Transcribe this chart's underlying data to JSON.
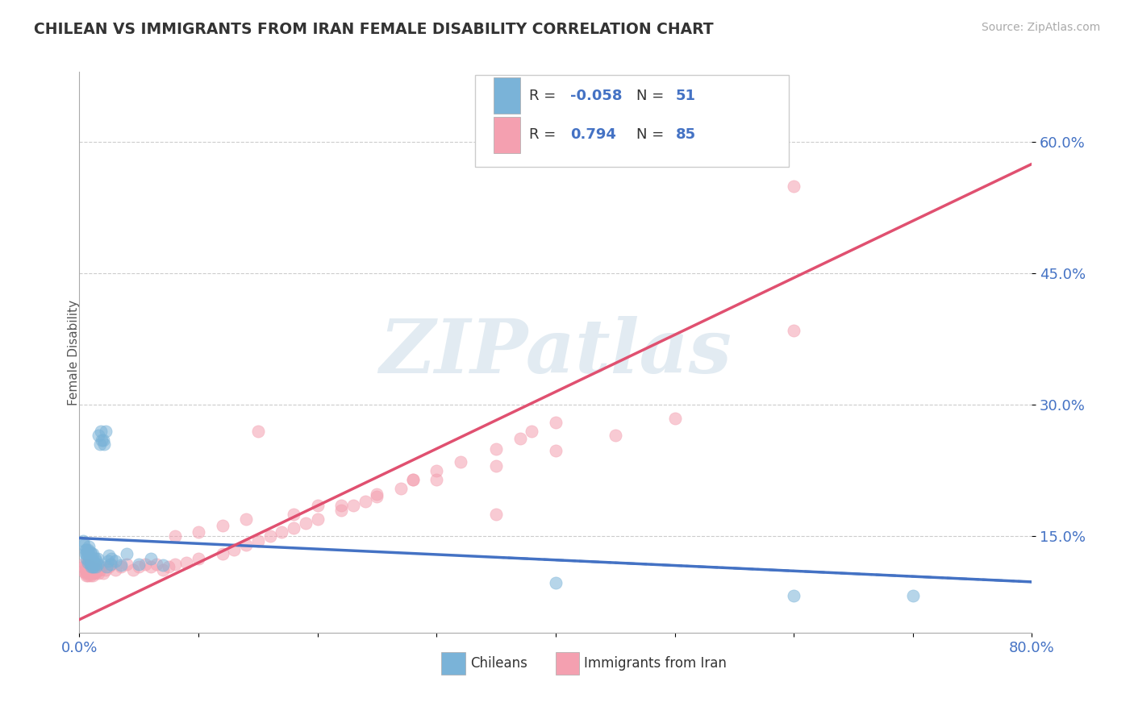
{
  "title": "CHILEAN VS IMMIGRANTS FROM IRAN FEMALE DISABILITY CORRELATION CHART",
  "source_text": "Source: ZipAtlas.com",
  "ylabel": "Female Disability",
  "xlim": [
    0.0,
    0.8
  ],
  "ylim": [
    0.04,
    0.68
  ],
  "yticks": [
    0.15,
    0.3,
    0.45,
    0.6
  ],
  "ytick_labels": [
    "15.0%",
    "30.0%",
    "45.0%",
    "60.0%"
  ],
  "xticks": [
    0.0,
    0.1,
    0.2,
    0.3,
    0.4,
    0.5,
    0.6,
    0.7,
    0.8
  ],
  "xtick_labels": [
    "0.0%",
    "",
    "",
    "",
    "",
    "",
    "",
    "",
    "80.0%"
  ],
  "legend_r1_label": "R = -0.058",
  "legend_n1_label": "N = 51",
  "legend_r2_label": "R =  0.794",
  "legend_n2_label": "N = 85",
  "chileans_color": "#7ab3d8",
  "iran_color": "#f4a0b0",
  "trend_chileans_color": "#4472c4",
  "trend_iran_color": "#e05070",
  "watermark": "ZIPatlas",
  "bottom_legend_chileans": "Chileans",
  "bottom_legend_iran": "Immigrants from Iran",
  "chile_trend_x0": 0.0,
  "chile_trend_y0": 0.148,
  "chile_trend_x1": 0.8,
  "chile_trend_y1": 0.098,
  "iran_trend_x0": 0.0,
  "iran_trend_y0": 0.055,
  "iran_trend_x1": 0.8,
  "iran_trend_y1": 0.575,
  "chileans_x": [
    0.003,
    0.004,
    0.005,
    0.005,
    0.006,
    0.006,
    0.006,
    0.007,
    0.007,
    0.007,
    0.008,
    0.008,
    0.008,
    0.009,
    0.009,
    0.009,
    0.01,
    0.01,
    0.01,
    0.011,
    0.011,
    0.011,
    0.012,
    0.012,
    0.013,
    0.013,
    0.014,
    0.014,
    0.015,
    0.015,
    0.016,
    0.017,
    0.018,
    0.019,
    0.02,
    0.021,
    0.022,
    0.023,
    0.024,
    0.025,
    0.026,
    0.027,
    0.03,
    0.035,
    0.04,
    0.05,
    0.06,
    0.07,
    0.4,
    0.6,
    0.7
  ],
  "chileans_y": [
    0.145,
    0.14,
    0.13,
    0.135,
    0.125,
    0.13,
    0.135,
    0.12,
    0.128,
    0.135,
    0.122,
    0.13,
    0.138,
    0.118,
    0.125,
    0.132,
    0.115,
    0.122,
    0.13,
    0.115,
    0.122,
    0.13,
    0.115,
    0.122,
    0.118,
    0.125,
    0.115,
    0.122,
    0.118,
    0.125,
    0.265,
    0.255,
    0.27,
    0.26,
    0.26,
    0.255,
    0.27,
    0.115,
    0.122,
    0.128,
    0.118,
    0.125,
    0.122,
    0.117,
    0.13,
    0.118,
    0.125,
    0.117,
    0.097,
    0.082,
    0.082
  ],
  "iran_x": [
    0.003,
    0.004,
    0.004,
    0.005,
    0.005,
    0.005,
    0.006,
    0.006,
    0.006,
    0.007,
    0.007,
    0.007,
    0.008,
    0.008,
    0.008,
    0.009,
    0.009,
    0.01,
    0.01,
    0.011,
    0.011,
    0.012,
    0.012,
    0.013,
    0.014,
    0.015,
    0.016,
    0.017,
    0.018,
    0.02,
    0.022,
    0.025,
    0.027,
    0.03,
    0.035,
    0.04,
    0.045,
    0.05,
    0.055,
    0.06,
    0.065,
    0.07,
    0.075,
    0.08,
    0.09,
    0.1,
    0.12,
    0.13,
    0.14,
    0.15,
    0.16,
    0.17,
    0.18,
    0.19,
    0.2,
    0.22,
    0.23,
    0.24,
    0.25,
    0.27,
    0.28,
    0.3,
    0.32,
    0.35,
    0.37,
    0.38,
    0.4,
    0.6,
    0.08,
    0.1,
    0.12,
    0.14,
    0.2,
    0.25,
    0.3,
    0.35,
    0.4,
    0.45,
    0.5,
    0.6,
    0.15,
    0.18,
    0.22,
    0.28,
    0.35
  ],
  "iran_y": [
    0.118,
    0.11,
    0.115,
    0.108,
    0.112,
    0.118,
    0.105,
    0.11,
    0.115,
    0.105,
    0.11,
    0.115,
    0.108,
    0.112,
    0.118,
    0.105,
    0.112,
    0.108,
    0.115,
    0.105,
    0.112,
    0.108,
    0.115,
    0.108,
    0.11,
    0.112,
    0.108,
    0.112,
    0.115,
    0.108,
    0.112,
    0.115,
    0.118,
    0.112,
    0.115,
    0.118,
    0.112,
    0.115,
    0.118,
    0.115,
    0.118,
    0.112,
    0.115,
    0.118,
    0.12,
    0.125,
    0.13,
    0.135,
    0.14,
    0.145,
    0.15,
    0.155,
    0.16,
    0.165,
    0.17,
    0.18,
    0.185,
    0.19,
    0.195,
    0.205,
    0.215,
    0.225,
    0.235,
    0.25,
    0.262,
    0.27,
    0.28,
    0.55,
    0.15,
    0.155,
    0.162,
    0.17,
    0.185,
    0.198,
    0.215,
    0.23,
    0.248,
    0.265,
    0.285,
    0.385,
    0.27,
    0.175,
    0.185,
    0.215,
    0.175
  ]
}
